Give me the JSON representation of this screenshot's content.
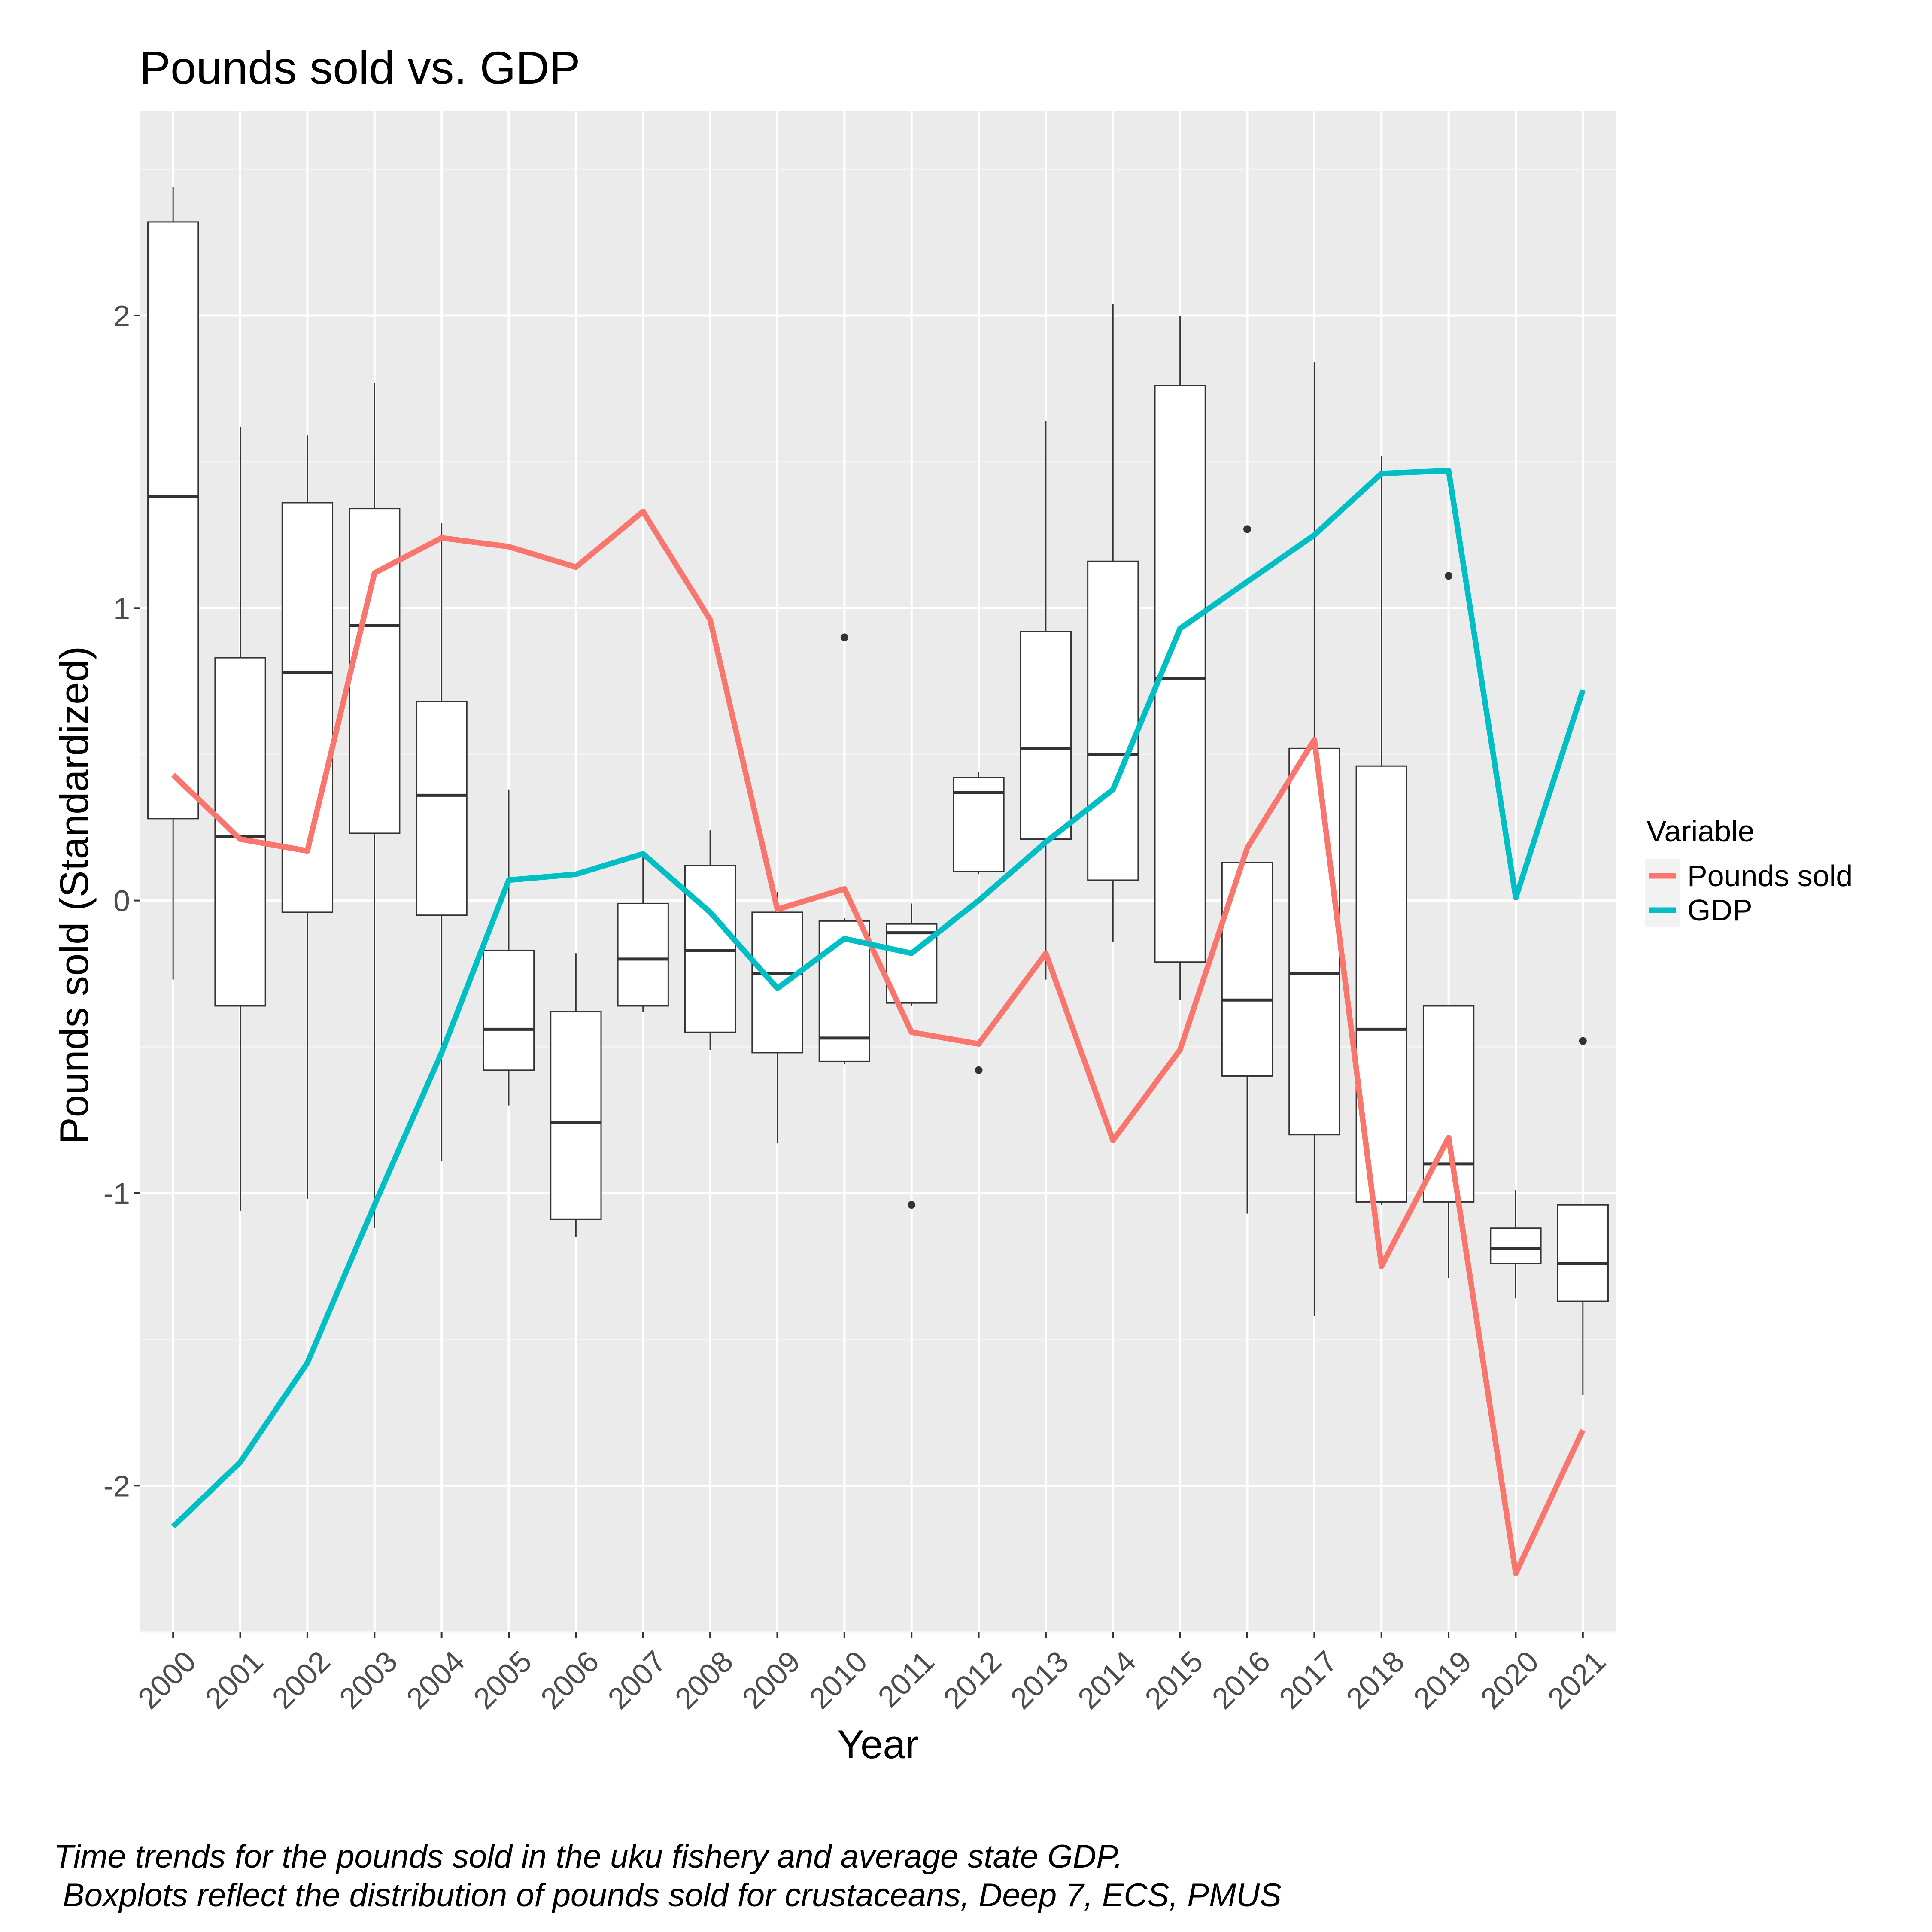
{
  "chart_data": {
    "type": "boxplot+line",
    "title": "Pounds sold vs. GDP",
    "xlabel": "Year",
    "ylabel": "Pounds sold (Standardized)",
    "categories": [
      "2000",
      "2001",
      "2002",
      "2003",
      "2004",
      "2005",
      "2006",
      "2007",
      "2008",
      "2009",
      "2010",
      "2011",
      "2012",
      "2013",
      "2014",
      "2015",
      "2016",
      "2017",
      "2018",
      "2019",
      "2020",
      "2021"
    ],
    "ylim": [
      -2.5,
      2.7
    ],
    "yticks": [
      -2,
      -1,
      0,
      1,
      2
    ],
    "grid": true,
    "legend": {
      "title": "Variable",
      "position": "right",
      "entries": [
        {
          "label": "Pounds sold",
          "color": "#F8766D"
        },
        {
          "label": "GDP",
          "color": "#00BFC4"
        }
      ]
    },
    "boxplots": [
      {
        "x": "2000",
        "lower": -0.27,
        "q1": 0.28,
        "median": 1.38,
        "q3": 2.32,
        "upper": 2.44,
        "outliers": []
      },
      {
        "x": "2001",
        "lower": -1.06,
        "q1": -0.36,
        "median": 0.22,
        "q3": 0.83,
        "upper": 1.62,
        "outliers": []
      },
      {
        "x": "2002",
        "lower": -1.02,
        "q1": -0.04,
        "median": 0.78,
        "q3": 1.36,
        "upper": 1.59,
        "outliers": []
      },
      {
        "x": "2003",
        "lower": -1.12,
        "q1": 0.23,
        "median": 0.94,
        "q3": 1.34,
        "upper": 1.77,
        "outliers": []
      },
      {
        "x": "2004",
        "lower": -0.89,
        "q1": -0.05,
        "median": 0.36,
        "q3": 0.68,
        "upper": 1.29,
        "outliers": []
      },
      {
        "x": "2005",
        "lower": -0.7,
        "q1": -0.58,
        "median": -0.44,
        "q3": -0.17,
        "upper": 0.38,
        "outliers": []
      },
      {
        "x": "2006",
        "lower": -1.15,
        "q1": -1.09,
        "median": -0.76,
        "q3": -0.38,
        "upper": -0.18,
        "outliers": []
      },
      {
        "x": "2007",
        "lower": -0.38,
        "q1": -0.36,
        "median": -0.2,
        "q3": -0.01,
        "upper": 0.15,
        "outliers": []
      },
      {
        "x": "2008",
        "lower": -0.51,
        "q1": -0.45,
        "median": -0.17,
        "q3": 0.12,
        "upper": 0.24,
        "outliers": []
      },
      {
        "x": "2009",
        "lower": -0.83,
        "q1": -0.52,
        "median": -0.25,
        "q3": -0.04,
        "upper": 0.03,
        "outliers": []
      },
      {
        "x": "2010",
        "lower": -0.56,
        "q1": -0.55,
        "median": -0.47,
        "q3": -0.07,
        "upper": -0.06,
        "outliers": [
          0.9
        ]
      },
      {
        "x": "2011",
        "lower": -0.36,
        "q1": -0.35,
        "median": -0.11,
        "q3": -0.08,
        "upper": -0.01,
        "outliers": [
          -1.04
        ]
      },
      {
        "x": "2012",
        "lower": 0.09,
        "q1": 0.1,
        "median": 0.37,
        "q3": 0.42,
        "upper": 0.44,
        "outliers": [
          -0.58
        ]
      },
      {
        "x": "2013",
        "lower": -0.27,
        "q1": 0.21,
        "median": 0.52,
        "q3": 0.92,
        "upper": 1.64,
        "outliers": []
      },
      {
        "x": "2014",
        "lower": -0.14,
        "q1": 0.07,
        "median": 0.5,
        "q3": 1.16,
        "upper": 2.04,
        "outliers": []
      },
      {
        "x": "2015",
        "lower": -0.34,
        "q1": -0.21,
        "median": 0.76,
        "q3": 1.76,
        "upper": 2.0,
        "outliers": []
      },
      {
        "x": "2016",
        "lower": -1.07,
        "q1": -0.6,
        "median": -0.34,
        "q3": 0.13,
        "upper": 0.13,
        "outliers": [
          1.27
        ]
      },
      {
        "x": "2017",
        "lower": -1.42,
        "q1": -0.8,
        "median": -0.25,
        "q3": 0.52,
        "upper": 1.84,
        "outliers": []
      },
      {
        "x": "2018",
        "lower": -1.04,
        "q1": -1.03,
        "median": -0.44,
        "q3": 0.46,
        "upper": 1.52,
        "outliers": []
      },
      {
        "x": "2019",
        "lower": -1.29,
        "q1": -1.03,
        "median": -0.9,
        "q3": -0.36,
        "upper": -0.36,
        "outliers": [
          1.11
        ]
      },
      {
        "x": "2020",
        "lower": -1.36,
        "q1": -1.24,
        "median": -1.19,
        "q3": -1.12,
        "upper": -0.99,
        "outliers": []
      },
      {
        "x": "2021",
        "lower": -1.69,
        "q1": -1.37,
        "median": -1.24,
        "q3": -1.04,
        "upper": -1.04,
        "outliers": [
          -0.48
        ]
      }
    ],
    "series": [
      {
        "name": "Pounds sold",
        "color": "#F8766D",
        "values": [
          0.43,
          0.21,
          0.17,
          1.12,
          1.24,
          1.21,
          1.14,
          1.33,
          0.96,
          -0.03,
          0.04,
          -0.45,
          -0.49,
          -0.18,
          -0.82,
          -0.51,
          0.18,
          0.55,
          -1.25,
          -0.81,
          -2.3,
          -1.81
        ]
      },
      {
        "name": "GDP",
        "color": "#00BFC4",
        "values": [
          -2.14,
          -1.92,
          -1.58,
          -1.04,
          -0.52,
          0.07,
          0.09,
          0.16,
          -0.04,
          -0.3,
          -0.13,
          -0.18,
          0.0,
          0.2,
          0.38,
          0.93,
          1.09,
          1.25,
          1.46,
          1.47,
          0.01,
          0.72
        ]
      }
    ],
    "caption_lines": [
      "Time trends for the pounds sold in the uku fishery and average state GDP.",
      " Boxplots reflect the distribution of pounds sold for crustaceans, Deep 7, ECS, PMUS"
    ]
  }
}
